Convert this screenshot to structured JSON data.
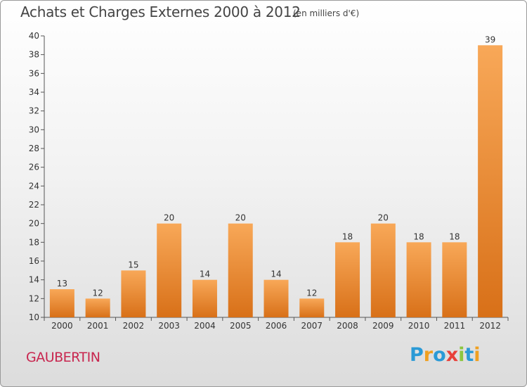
{
  "title": "Achats et Charges Externes 2000 à 2012",
  "unit": "(en milliers d'€)",
  "commune": "GAUBERTIN",
  "logo": {
    "letters": [
      "P",
      "r",
      "o",
      "x",
      "i",
      "t",
      "i"
    ],
    "colors": [
      "#2a9ad6",
      "#f0a020",
      "#2a9ad6",
      "#e8403a",
      "#8cc63f",
      "#2a9ad6",
      "#f0a020"
    ]
  },
  "colors": {
    "bar_light": "#f8a858",
    "bar_dark": "#d87018",
    "axis": "#555555"
  },
  "chart_data": {
    "type": "bar",
    "title": "Achats et Charges Externes 2000 à 2012",
    "subtitle": "(en milliers d'€)",
    "categories": [
      "2000",
      "2001",
      "2002",
      "2003",
      "2004",
      "2005",
      "2006",
      "2007",
      "2008",
      "2009",
      "2010",
      "2011",
      "2012"
    ],
    "values": [
      13,
      12,
      15,
      20,
      14,
      20,
      14,
      12,
      18,
      20,
      18,
      18,
      39
    ],
    "ylim": [
      10,
      40
    ],
    "yticks": [
      10,
      12,
      14,
      16,
      18,
      20,
      22,
      24,
      26,
      28,
      30,
      32,
      34,
      36,
      38,
      40
    ],
    "grid": false,
    "xlabel": "",
    "ylabel": ""
  }
}
